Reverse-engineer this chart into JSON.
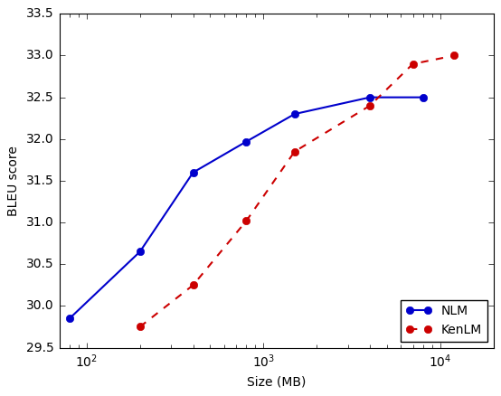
{
  "nlm_x": [
    80,
    200,
    400,
    800,
    1500,
    4000,
    8000
  ],
  "nlm_y": [
    29.85,
    30.65,
    31.6,
    31.97,
    32.3,
    32.5,
    32.5
  ],
  "kenlm_x": [
    200,
    400,
    800,
    1500,
    4000,
    7000,
    12000
  ],
  "kenlm_y": [
    29.75,
    30.25,
    31.02,
    31.85,
    32.4,
    32.9,
    33.0
  ],
  "nlm_color": "#0000cc",
  "kenlm_color": "#cc0000",
  "xlabel": "Size (MB)",
  "ylabel": "BLEU score",
  "ylim": [
    29.5,
    33.45
  ],
  "xlim_log": [
    70,
    20000
  ],
  "legend_labels": [
    "NLM",
    "KenLM"
  ],
  "legend_loc": "lower right",
  "xticks": [
    100,
    1000,
    10000
  ],
  "yticks": [
    29.5,
    30.0,
    30.5,
    31.0,
    31.5,
    32.0,
    32.5,
    33.0,
    33.5
  ],
  "fontsize_label": 10,
  "fontsize_tick": 10,
  "fontsize_legend": 10,
  "linewidth": 1.5,
  "markersize": 6
}
